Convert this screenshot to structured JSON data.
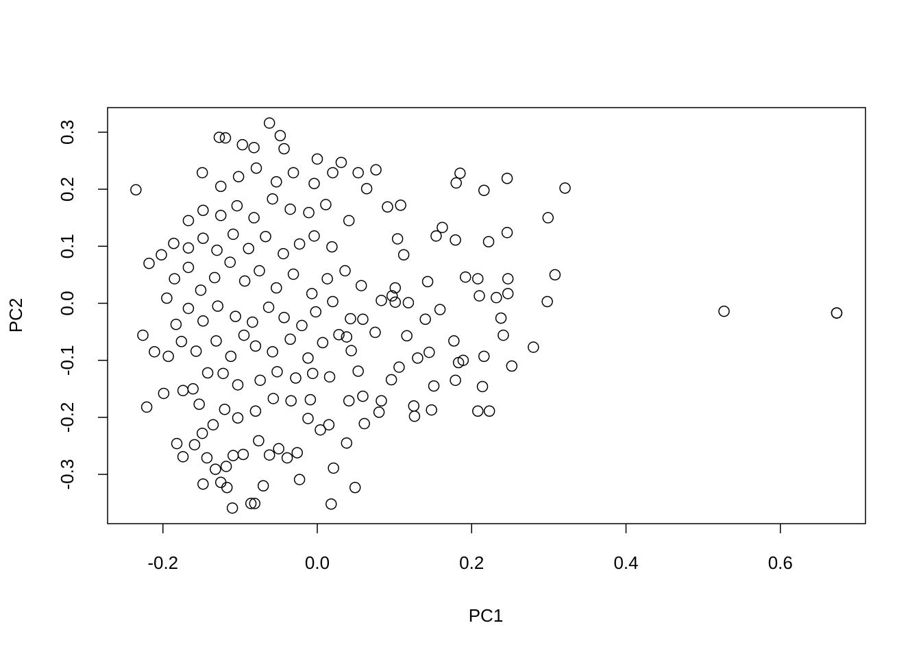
{
  "chart_data": {
    "type": "scatter",
    "x_label": "PC1",
    "y_label": "PC2",
    "xlim": [
      -0.2717,
      0.7103
    ],
    "ylim": [
      -0.3864,
      0.3431
    ],
    "xticks": [
      -0.2,
      {
        "value": 0,
        "label": "0.0"
      },
      0.2,
      0.4,
      0.6
    ],
    "yticks": [
      -0.3,
      -0.2,
      -0.1,
      {
        "value": 0,
        "label": "0.0"
      },
      0.1,
      0.2,
      0.3
    ],
    "color": "#000000",
    "x": [
      -0.235,
      0.527,
      0.673,
      0.673,
      0.321,
      0.299,
      0.308,
      0.298,
      0.28,
      0.252,
      0.246,
      0.246,
      0.247,
      0.247,
      0.241,
      0.238,
      0.232,
      0.222,
      0.216,
      0.185,
      0.18,
      0.179,
      0.192,
      0.208,
      0.21,
      0.223,
      0.208,
      0.214,
      0.216,
      0.177,
      0.179,
      0.183,
      0.189,
      0.162,
      0.154,
      0.148,
      0.151,
      0.145,
      0.143,
      0.125,
      0.126,
      0.13,
      0.106,
      0.096,
      0.083,
      0.08,
      0.061,
      0.049,
      0.018,
      0.021,
      0.038,
      -0.11,
      -0.086,
      -0.081,
      -0.07,
      -0.023,
      -0.148,
      -0.125,
      -0.117,
      -0.221,
      -0.226,
      -0.211,
      -0.218,
      -0.202,
      -0.199,
      -0.195,
      -0.182,
      -0.174,
      -0.062,
      -0.127,
      -0.119,
      -0.048,
      -0.097,
      -0.082,
      -0.043,
      0.0,
      0.053,
      0.076,
      0.064,
      0.108,
      0.091,
      0.112,
      0.104,
      0.101,
      0.097,
      0.083,
      0.101,
      0.118,
      0.159,
      0.14,
      0.116,
      0.075,
      0.059,
      0.038,
      0.044,
      0.053,
      0.059,
      0.041,
      0.015,
      0.004,
      -0.012,
      -0.026,
      -0.039,
      -0.05,
      -0.062,
      -0.076,
      -0.096,
      -0.109,
      -0.118,
      -0.132,
      -0.143,
      -0.159,
      -0.149,
      -0.135,
      -0.12,
      -0.103,
      -0.08,
      -0.057,
      -0.034,
      -0.009,
      -0.174,
      -0.161,
      -0.153,
      -0.142,
      -0.122,
      -0.103,
      -0.074,
      -0.052,
      -0.028,
      -0.006,
      0.016,
      -0.193,
      -0.176,
      -0.157,
      -0.131,
      -0.112,
      -0.095,
      -0.08,
      -0.058,
      -0.035,
      -0.012,
      0.007,
      0.028,
      -0.183,
      -0.167,
      -0.148,
      -0.129,
      -0.106,
      -0.084,
      -0.063,
      -0.043,
      -0.02,
      -0.002,
      0.02,
      0.043,
      -0.185,
      -0.167,
      -0.151,
      -0.133,
      -0.113,
      -0.094,
      -0.075,
      -0.053,
      -0.031,
      -0.007,
      0.013,
      0.036,
      0.057,
      -0.186,
      -0.167,
      -0.148,
      -0.13,
      -0.109,
      -0.089,
      -0.067,
      -0.044,
      -0.023,
      -0.004,
      0.019,
      0.041,
      -0.167,
      -0.148,
      -0.125,
      -0.104,
      -0.082,
      -0.058,
      -0.035,
      -0.011,
      0.011,
      -0.149,
      -0.125,
      -0.102,
      -0.079,
      -0.053,
      -0.031,
      -0.004,
      0.02,
      0.031
    ],
    "y": [
      0.199,
      -0.014,
      -0.017,
      -0.017,
      0.202,
      0.15,
      0.05,
      0.003,
      -0.077,
      -0.11,
      0.219,
      0.124,
      0.043,
      0.017,
      -0.056,
      -0.026,
      0.01,
      0.108,
      0.198,
      0.228,
      0.211,
      0.111,
      0.046,
      0.043,
      0.013,
      -0.189,
      -0.189,
      -0.146,
      -0.093,
      -0.066,
      -0.135,
      -0.104,
      -0.1,
      0.133,
      0.118,
      -0.187,
      -0.145,
      -0.086,
      0.038,
      -0.18,
      -0.198,
      -0.096,
      -0.112,
      -0.134,
      -0.171,
      -0.191,
      -0.211,
      -0.323,
      -0.352,
      -0.289,
      -0.245,
      -0.359,
      -0.351,
      -0.351,
      -0.32,
      -0.309,
      -0.317,
      -0.314,
      -0.323,
      -0.182,
      -0.056,
      -0.085,
      0.07,
      0.085,
      -0.158,
      0.009,
      -0.246,
      -0.269,
      0.316,
      0.291,
      0.29,
      0.294,
      0.278,
      0.273,
      0.271,
      0.253,
      0.229,
      0.234,
      0.201,
      0.172,
      0.169,
      0.085,
      0.113,
      0.027,
      0.013,
      0.005,
      0.002,
      0.001,
      -0.011,
      -0.028,
      -0.057,
      -0.051,
      -0.028,
      -0.059,
      -0.083,
      -0.119,
      -0.163,
      -0.171,
      -0.213,
      -0.222,
      -0.202,
      -0.262,
      -0.271,
      -0.255,
      -0.266,
      -0.241,
      -0.265,
      -0.267,
      -0.286,
      -0.291,
      -0.271,
      -0.248,
      -0.228,
      -0.213,
      -0.186,
      -0.201,
      -0.189,
      -0.167,
      -0.171,
      -0.169,
      -0.153,
      -0.15,
      -0.177,
      -0.122,
      -0.123,
      -0.143,
      -0.135,
      -0.12,
      -0.131,
      -0.123,
      -0.129,
      -0.093,
      -0.067,
      -0.084,
      -0.066,
      -0.093,
      -0.056,
      -0.075,
      -0.085,
      -0.063,
      -0.096,
      -0.069,
      -0.055,
      -0.037,
      -0.009,
      -0.031,
      -0.005,
      -0.023,
      -0.033,
      -0.007,
      -0.025,
      -0.039,
      -0.015,
      0.003,
      -0.027,
      0.043,
      0.063,
      0.023,
      0.045,
      0.072,
      0.039,
      0.057,
      0.027,
      0.051,
      0.017,
      0.043,
      0.057,
      0.031,
      0.105,
      0.097,
      0.114,
      0.093,
      0.121,
      0.096,
      0.117,
      0.087,
      0.104,
      0.118,
      0.099,
      0.145,
      0.145,
      0.163,
      0.154,
      0.171,
      0.15,
      0.183,
      0.165,
      0.159,
      0.173,
      0.229,
      0.205,
      0.222,
      0.237,
      0.213,
      0.229,
      0.21,
      0.229,
      0.247
    ]
  }
}
